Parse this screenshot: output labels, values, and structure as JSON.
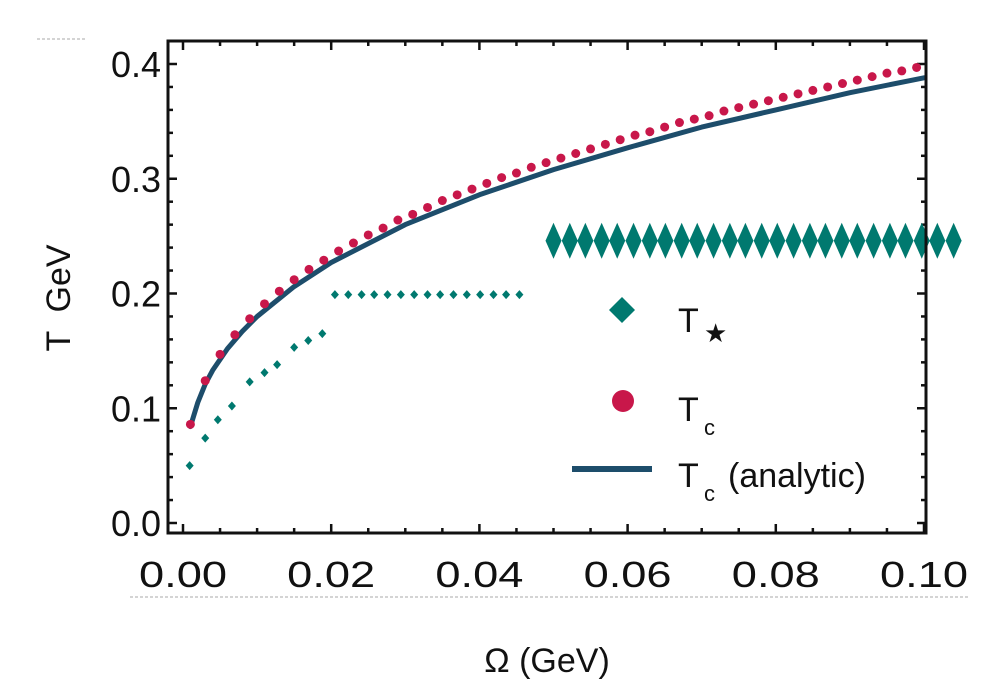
{
  "chart_data": {
    "type": "scatter",
    "title": "",
    "xlabel": "Ω (GeV)",
    "ylabel": "T  GeV",
    "xlim": [
      -0.002,
      0.1
    ],
    "ylim": [
      -0.008,
      0.415
    ],
    "xticks": [
      {
        "value": 0.0,
        "label": "0.00"
      },
      {
        "value": 0.02,
        "label": "0.02"
      },
      {
        "value": 0.04,
        "label": "0.04"
      },
      {
        "value": 0.06,
        "label": "0.06"
      },
      {
        "value": 0.08,
        "label": "0.08"
      },
      {
        "value": 0.1,
        "label": "0.10"
      }
    ],
    "yticks": [
      {
        "value": 0.0,
        "label": "0.0"
      },
      {
        "value": 0.1,
        "label": "0.1"
      },
      {
        "value": 0.2,
        "label": "0.2"
      },
      {
        "value": 0.3,
        "label": "0.3"
      },
      {
        "value": 0.4,
        "label": "0.4"
      }
    ],
    "grid": false,
    "legend_position": "center-right",
    "series": [
      {
        "name": "T★",
        "legend_main": "T",
        "legend_sub": "★",
        "legend_suffix": "",
        "kind": "scatter",
        "marker": "diamond",
        "color": "#00796f",
        "groups": [
          {
            "label": "low",
            "marker_size": "small",
            "x": [
              0.0009,
              0.003,
              0.0047,
              0.0066,
              0.009,
              0.011,
              0.0127,
              0.015,
              0.0169,
              0.0188
            ],
            "y": [
              0.05,
              0.074,
              0.09,
              0.102,
              0.123,
              0.131,
              0.138,
              0.153,
              0.159,
              0.165
            ]
          },
          {
            "label": "plateau-0.2",
            "marker_size": "small",
            "x": [
              0.0205,
              0.0223,
              0.0241,
              0.0258,
              0.0276,
              0.0294,
              0.0312,
              0.033,
              0.0347,
              0.0365,
              0.0383,
              0.0401,
              0.0419,
              0.0436,
              0.0454
            ],
            "y": [
              0.199,
              0.199,
              0.199,
              0.199,
              0.199,
              0.199,
              0.199,
              0.199,
              0.199,
              0.199,
              0.199,
              0.199,
              0.199,
              0.199,
              0.199
            ]
          },
          {
            "label": "plateau-0.25",
            "marker_size": "large",
            "x": [
              0.05,
              0.0522,
              0.0543,
              0.0565,
              0.0586,
              0.0608,
              0.063,
              0.0651,
              0.0673,
              0.0694,
              0.0716,
              0.0738,
              0.0759,
              0.0781,
              0.0802,
              0.0824,
              0.0846,
              0.0867,
              0.0889,
              0.091,
              0.0932,
              0.0954,
              0.0975,
              0.0997,
              0.1018,
              0.104
            ],
            "y": [
              0.246,
              0.246,
              0.246,
              0.246,
              0.246,
              0.246,
              0.246,
              0.246,
              0.246,
              0.246,
              0.246,
              0.246,
              0.246,
              0.246,
              0.246,
              0.246,
              0.246,
              0.246,
              0.246,
              0.246,
              0.246,
              0.246,
              0.246,
              0.246,
              0.246,
              0.246
            ]
          }
        ]
      },
      {
        "name": "Tc",
        "legend_main": "T",
        "legend_sub": "c",
        "legend_suffix": "",
        "kind": "scatter",
        "marker": "circle",
        "color": "#c8174a",
        "x": [
          0.001,
          0.003,
          0.005,
          0.007,
          0.009,
          0.011,
          0.013,
          0.015,
          0.017,
          0.019,
          0.021,
          0.023,
          0.025,
          0.027,
          0.029,
          0.031,
          0.033,
          0.035,
          0.037,
          0.039,
          0.041,
          0.043,
          0.045,
          0.047,
          0.049,
          0.051,
          0.053,
          0.055,
          0.057,
          0.059,
          0.061,
          0.063,
          0.065,
          0.067,
          0.069,
          0.071,
          0.073,
          0.075,
          0.077,
          0.079,
          0.081,
          0.083,
          0.085,
          0.087,
          0.089,
          0.091,
          0.093,
          0.095,
          0.097,
          0.099
        ],
        "y": [
          0.086,
          0.124,
          0.147,
          0.164,
          0.178,
          0.191,
          0.202,
          0.212,
          0.221,
          0.229,
          0.237,
          0.244,
          0.251,
          0.257,
          0.264,
          0.269,
          0.275,
          0.281,
          0.286,
          0.291,
          0.296,
          0.301,
          0.305,
          0.31,
          0.314,
          0.318,
          0.322,
          0.326,
          0.33,
          0.334,
          0.338,
          0.341,
          0.345,
          0.349,
          0.352,
          0.355,
          0.359,
          0.362,
          0.365,
          0.368,
          0.371,
          0.374,
          0.377,
          0.38,
          0.383,
          0.386,
          0.389,
          0.392,
          0.394,
          0.397
        ]
      },
      {
        "name": "Tc (analytic)",
        "legend_main": "T",
        "legend_sub": "c",
        "legend_suffix": "(analytic)",
        "kind": "line",
        "color": "#1d4d6b",
        "x": [
          0.001,
          0.002,
          0.003,
          0.004,
          0.006,
          0.008,
          0.01,
          0.015,
          0.02,
          0.03,
          0.04,
          0.05,
          0.06,
          0.07,
          0.08,
          0.09,
          0.1
        ],
        "y": [
          0.084,
          0.105,
          0.121,
          0.133,
          0.152,
          0.167,
          0.18,
          0.206,
          0.227,
          0.26,
          0.286,
          0.308,
          0.327,
          0.345,
          0.36,
          0.375,
          0.388
        ]
      }
    ]
  }
}
